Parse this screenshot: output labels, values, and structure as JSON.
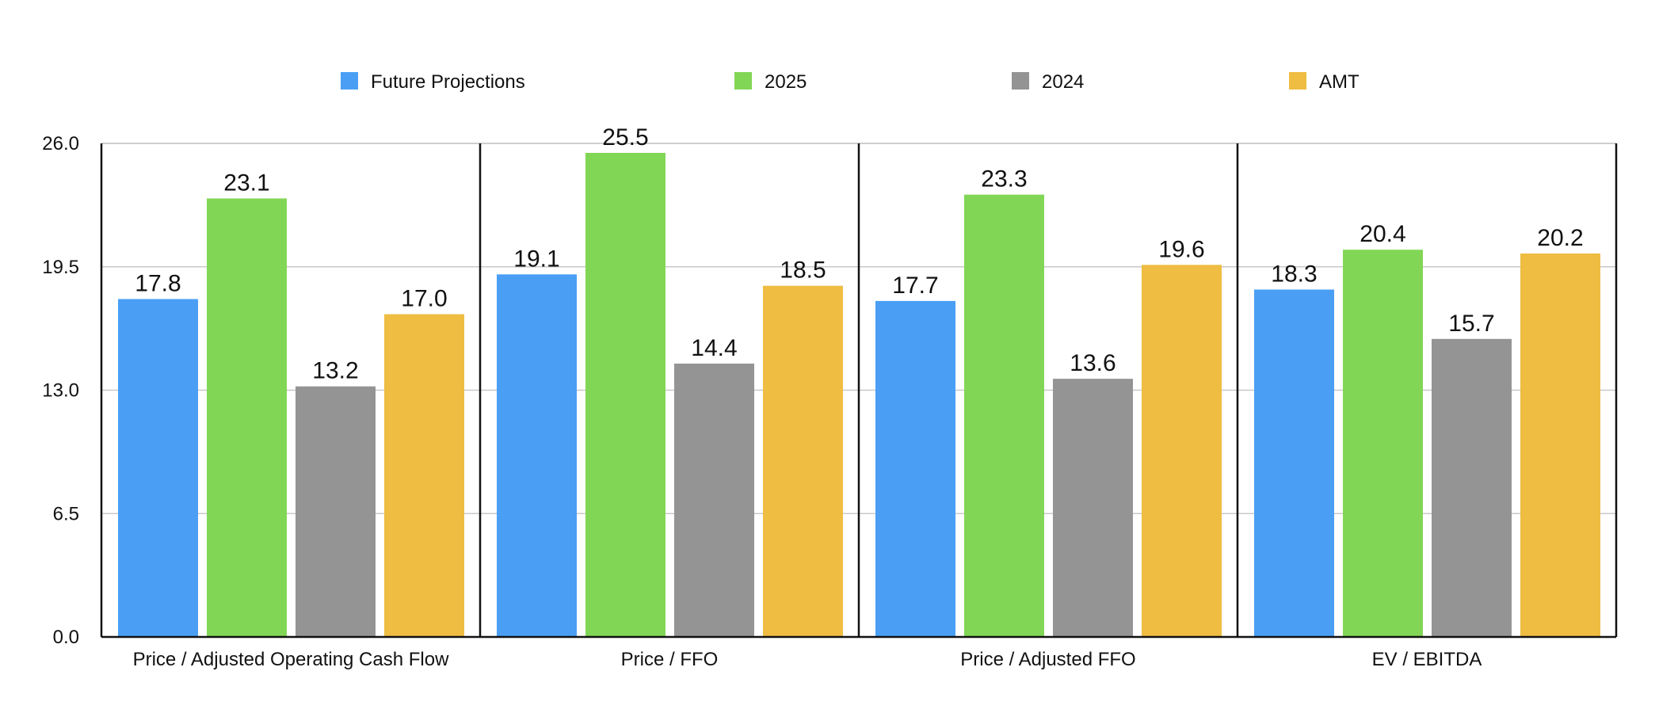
{
  "chart_data": {
    "type": "bar",
    "title": "",
    "xlabel": "",
    "ylabel": "",
    "ylim": [
      0,
      26
    ],
    "yticks": [
      "0.0",
      "6.5",
      "13.0",
      "19.5",
      "26.0"
    ],
    "ytick_values": [
      0,
      6.5,
      13,
      19.5,
      26
    ],
    "grid": true,
    "legend_position": "top-center",
    "categories": [
      "Price / Adjusted Operating Cash Flow",
      "Price / FFO",
      "Price / Adjusted FFO",
      "EV / EBITDA"
    ],
    "series": [
      {
        "name": "Future Projections",
        "color": "#4a9ff5",
        "values": [
          17.8,
          19.1,
          17.7,
          18.3
        ],
        "labels": [
          "17.8",
          "19.1",
          "17.7",
          "18.3"
        ]
      },
      {
        "name": "2025",
        "color": "#82d655",
        "values": [
          23.1,
          25.5,
          23.3,
          20.4
        ],
        "labels": [
          "23.1",
          "25.5",
          "23.3",
          "20.4"
        ]
      },
      {
        "name": "2024",
        "color": "#949494",
        "values": [
          13.2,
          14.4,
          13.6,
          15.7
        ],
        "labels": [
          "13.2",
          "14.4",
          "13.6",
          "15.7"
        ]
      },
      {
        "name": "AMT",
        "color": "#eebd42",
        "values": [
          17.0,
          18.5,
          19.6,
          20.2
        ],
        "labels": [
          "17.0",
          "18.5",
          "19.6",
          "20.2"
        ]
      }
    ]
  }
}
